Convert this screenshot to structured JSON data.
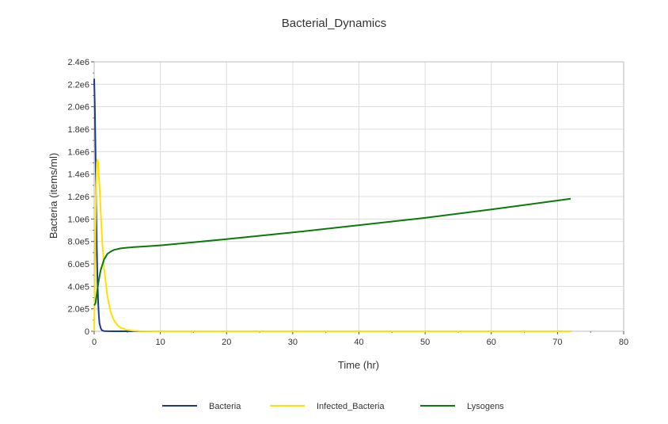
{
  "chart_data": {
    "type": "line",
    "title": "Bacterial_Dynamics",
    "xlabel": "Time (hr)",
    "ylabel": "Bacteria (items/ml)",
    "xlim": [
      0,
      80
    ],
    "ylim": [
      0,
      2400000
    ],
    "x_ticks": [
      0,
      10,
      20,
      30,
      40,
      50,
      60,
      70,
      80
    ],
    "x_tick_labels": [
      "0",
      "10",
      "20",
      "30",
      "40",
      "50",
      "60",
      "70",
      "80"
    ],
    "y_ticks": [
      0,
      200000,
      400000,
      600000,
      800000,
      1000000,
      1200000,
      1400000,
      1600000,
      1800000,
      2000000,
      2200000,
      2400000
    ],
    "y_tick_labels": [
      "0",
      "2.0e5",
      "4.0e5",
      "6.0e5",
      "8.0e5",
      "1.0e6",
      "1.2e6",
      "1.4e6",
      "1.6e6",
      "1.8e6",
      "2.0e6",
      "2.2e6",
      "2.4e6"
    ],
    "grid": true,
    "legend_position": "bottom",
    "series": [
      {
        "name": "Bacteria",
        "color": "#1a3a8c",
        "x": [
          0,
          0.1,
          0.2,
          0.3,
          0.4,
          0.5,
          0.6,
          0.7,
          0.8,
          1.0,
          1.2,
          1.5,
          2,
          3,
          5,
          10,
          20,
          40,
          60,
          72
        ],
        "values": [
          2250000,
          2000000,
          1600000,
          1150000,
          750000,
          450000,
          260000,
          140000,
          70000,
          25000,
          8000,
          2000,
          500,
          0,
          0,
          0,
          0,
          0,
          0,
          0
        ]
      },
      {
        "name": "Infected_Bacteria",
        "color": "#ffe000",
        "x": [
          0,
          0.1,
          0.2,
          0.3,
          0.4,
          0.5,
          0.6,
          0.8,
          1.0,
          1.2,
          1.5,
          2.0,
          2.5,
          3.0,
          3.5,
          4.0,
          5.0,
          6.0,
          7.0,
          10,
          20,
          40,
          60,
          72
        ],
        "values": [
          0,
          400000,
          900000,
          1300000,
          1500000,
          1530000,
          1500000,
          1300000,
          1050000,
          820000,
          560000,
          310000,
          170000,
          95000,
          55000,
          32000,
          12000,
          4000,
          1000,
          0,
          0,
          0,
          0,
          0
        ]
      },
      {
        "name": "Lysogens",
        "color": "#0a7a0a",
        "x": [
          0,
          0.2,
          0.4,
          0.6,
          0.8,
          1.0,
          1.5,
          2.0,
          2.5,
          3.0,
          4.0,
          5.0,
          6.0,
          8.0,
          10,
          20,
          30,
          40,
          50,
          60,
          72
        ],
        "values": [
          230000,
          250000,
          330000,
          420000,
          490000,
          550000,
          640000,
          690000,
          710000,
          725000,
          738000,
          745000,
          750000,
          757000,
          765000,
          820000,
          880000,
          945000,
          1010000,
          1085000,
          1180000
        ]
      }
    ]
  }
}
